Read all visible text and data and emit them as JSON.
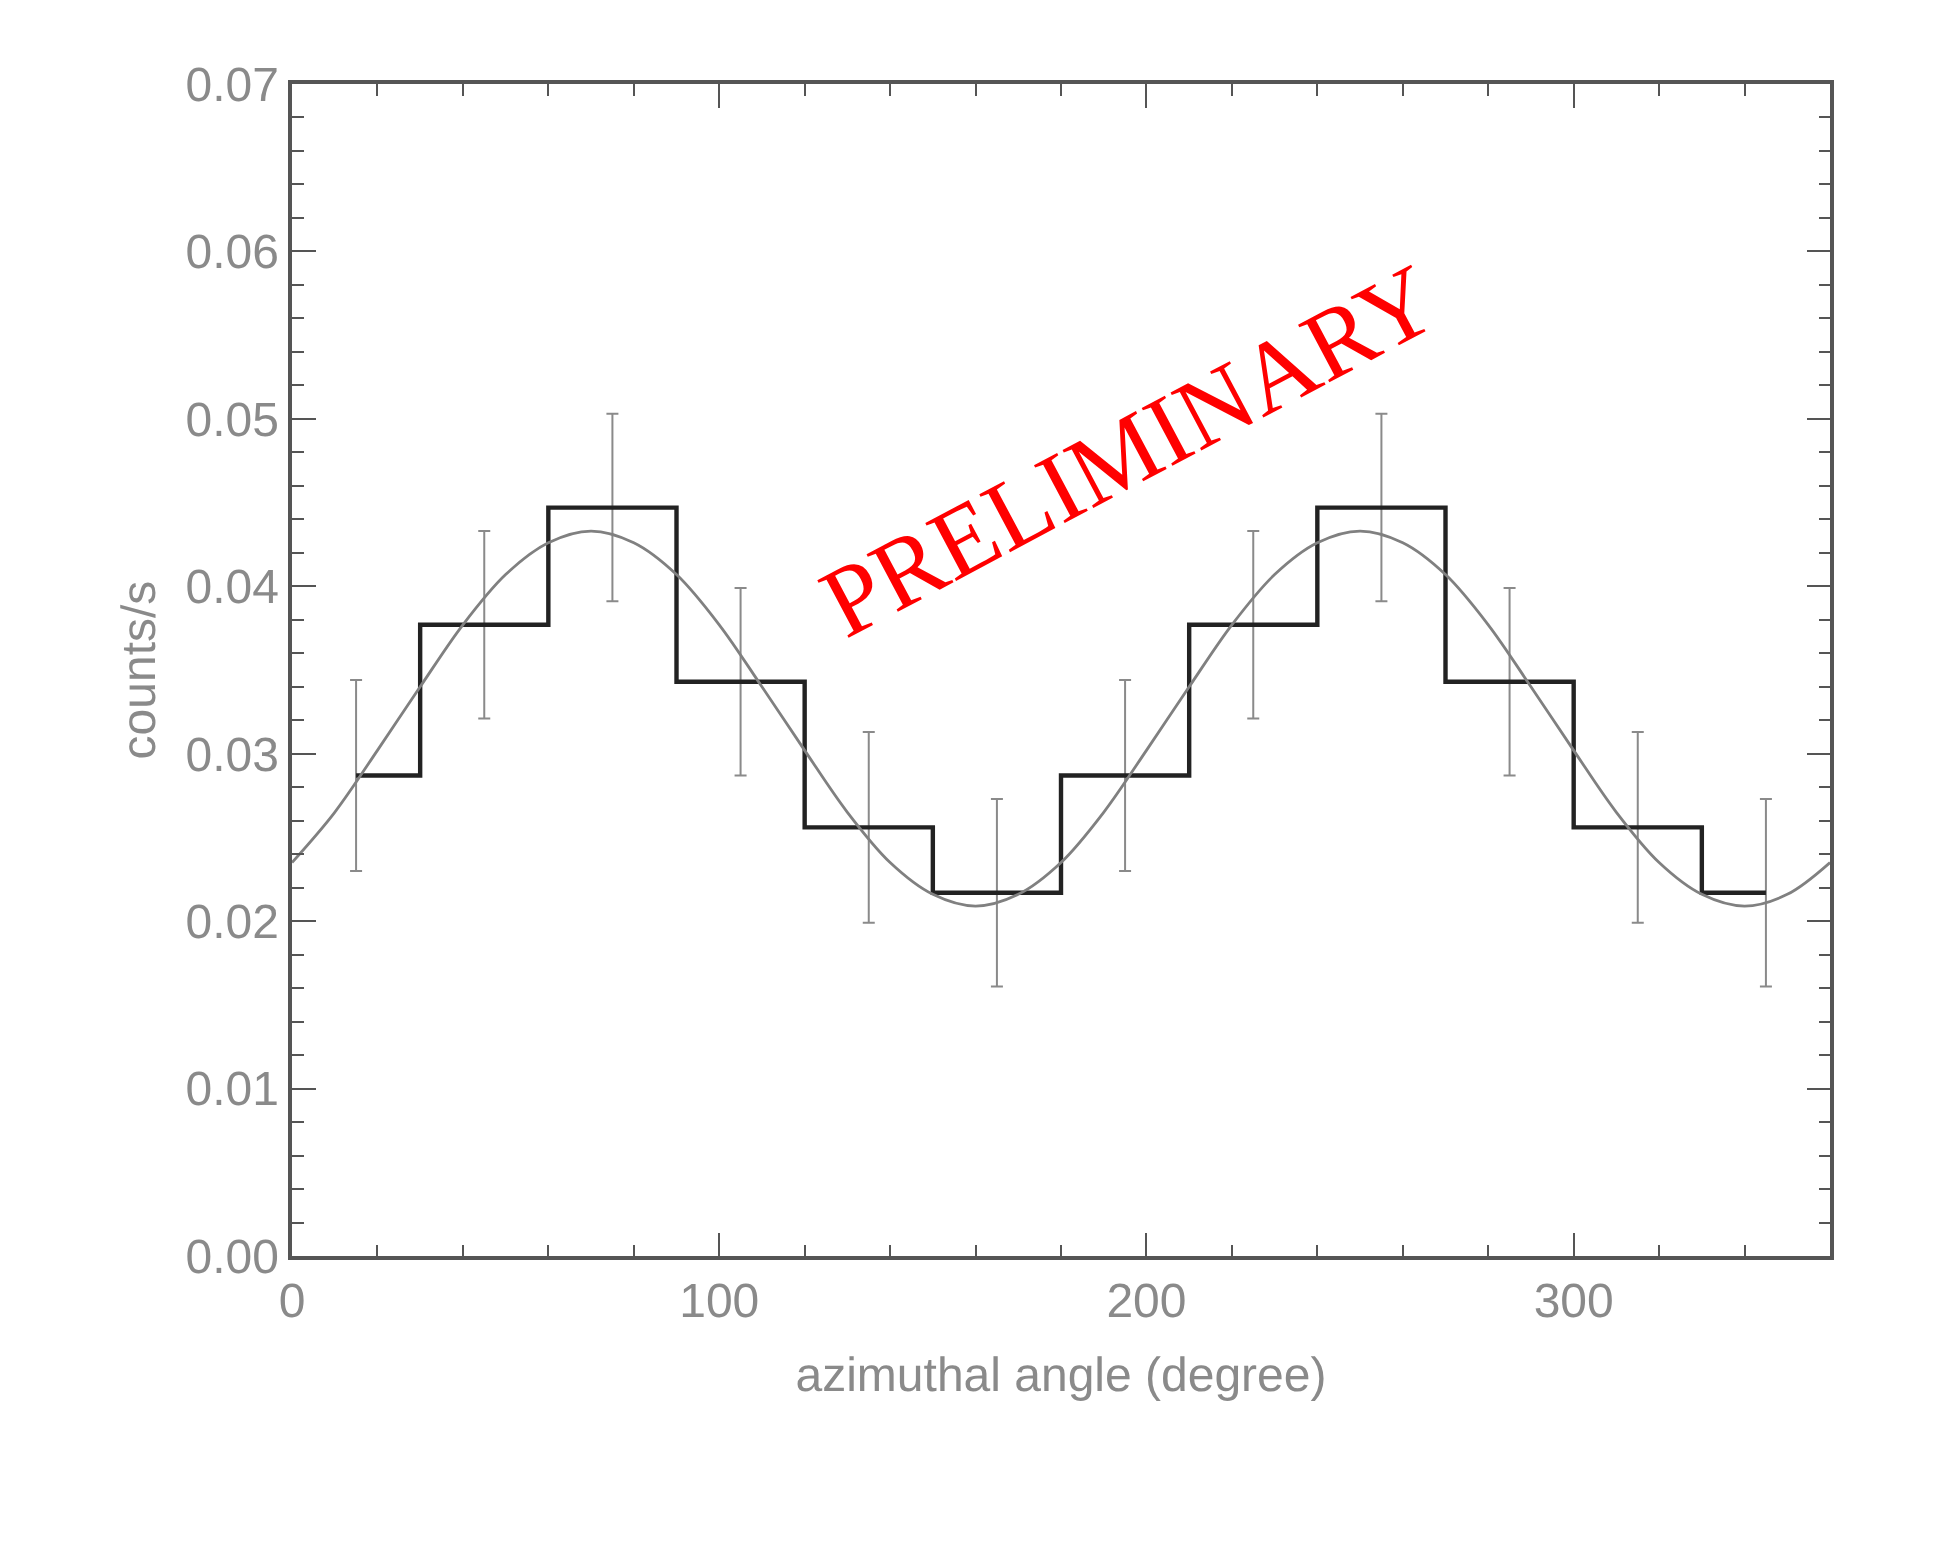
{
  "chart_data": {
    "type": "step",
    "xlabel": "azimuthal angle (degree)",
    "ylabel": "counts/s",
    "xlim": [
      0,
      360
    ],
    "xticks": [
      0,
      100,
      200,
      300
    ],
    "ylim": [
      0,
      0.07
    ],
    "yticks": [
      {
        "value": 0,
        "label": "0.00"
      },
      0.01,
      0.02,
      0.03,
      0.04,
      0.05,
      0.06,
      0.07
    ],
    "marker": "none",
    "annotations": [
      "PRELIMINARY"
    ],
    "series": [
      {
        "color": "#222222",
        "x": [
          15,
          45,
          75,
          105,
          135,
          165,
          195,
          225,
          255,
          285,
          315,
          345
        ],
        "values": [
          0.0287,
          0.0377,
          0.0447,
          0.0343,
          0.0256,
          0.0217,
          0.0287,
          0.0377,
          0.0447,
          0.0343,
          0.0256,
          0.0217
        ],
        "errors": [
          0.0057,
          0.0056,
          0.0056,
          0.0056,
          0.0057,
          0.0056,
          0.0057,
          0.0056,
          0.0056,
          0.0056,
          0.0057,
          0.0056
        ]
      },
      {
        "type": "line",
        "color": "#808080",
        "x": [
          0,
          10,
          20,
          30,
          40,
          50,
          60,
          70,
          80,
          90,
          100,
          110,
          120,
          130,
          140,
          150,
          160,
          170,
          180,
          190,
          200,
          210,
          220,
          230,
          240,
          250,
          260,
          270,
          280,
          290,
          300,
          310,
          320,
          330,
          340,
          350,
          360
        ],
        "values": [
          0.0235,
          0.0265,
          0.0302,
          0.034,
          0.0377,
          0.0407,
          0.0426,
          0.0433,
          0.0426,
          0.0407,
          0.0377,
          0.034,
          0.0302,
          0.0265,
          0.0235,
          0.0216,
          0.0209,
          0.0216,
          0.0235,
          0.0265,
          0.0302,
          0.034,
          0.0377,
          0.0407,
          0.0426,
          0.0433,
          0.0426,
          0.0407,
          0.0377,
          0.034,
          0.0302,
          0.0265,
          0.0235,
          0.0216,
          0.0209,
          0.0216,
          0.0235
        ]
      }
    ]
  }
}
